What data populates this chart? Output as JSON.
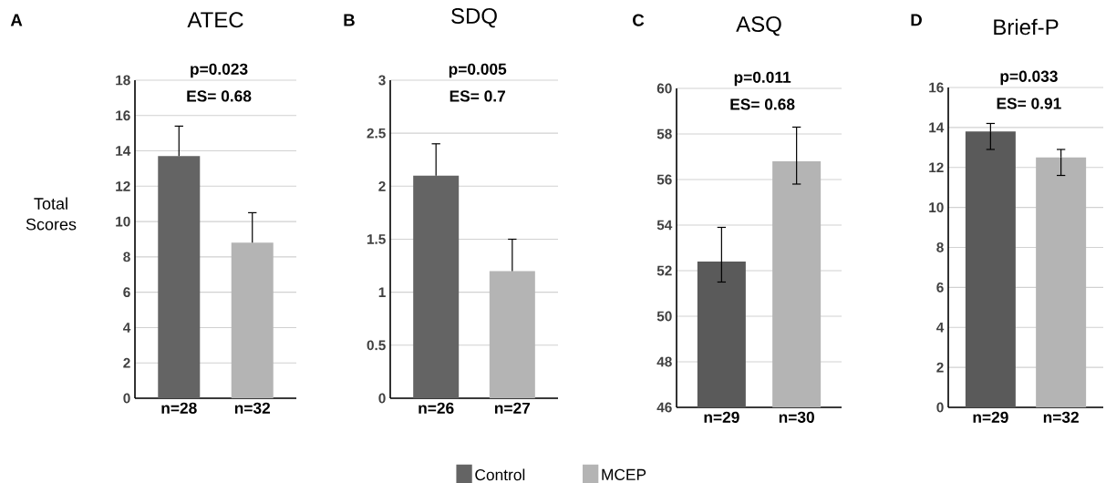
{
  "chart_data": [
    {
      "type": "bar",
      "title": "ATEC",
      "ylabel": "Total Scores",
      "annotations": [
        "A",
        "p=0.023",
        "ES= 0.68"
      ],
      "categories": [
        "n=28",
        "n=32"
      ],
      "ylim": [
        0,
        18
      ],
      "yticks": [
        0,
        2,
        4,
        6,
        8,
        10,
        12,
        14,
        16,
        18
      ],
      "grid": "y",
      "legend": "bottom",
      "series": [
        {
          "name": "Control",
          "color": "#646464",
          "values": [
            13.7,
            null
          ],
          "errors": [
            [
              13.7,
              15.4
            ],
            null
          ]
        },
        {
          "name": "MCEP",
          "color": "#b4b4b4",
          "values": [
            null,
            8.8
          ],
          "errors": [
            null,
            [
              8.8,
              10.5
            ]
          ]
        }
      ]
    },
    {
      "type": "bar",
      "title": "SDQ",
      "annotations": [
        "B",
        "p=0.005",
        "ES= 0.7"
      ],
      "categories": [
        "n=26",
        "n=27"
      ],
      "ylim": [
        0,
        3
      ],
      "yticks": [
        0,
        0.5,
        1,
        1.5,
        2,
        2.5,
        3
      ],
      "grid": "y",
      "series": [
        {
          "color": "#646464",
          "values": [
            2.1,
            null
          ],
          "errors": [
            [
              2.1,
              2.4
            ],
            null
          ]
        },
        {
          "color": "#b4b4b4",
          "values": [
            null,
            1.2
          ],
          "errors": [
            null,
            [
              1.2,
              1.5
            ]
          ]
        }
      ]
    },
    {
      "type": "bar",
      "title": "ASQ",
      "annotations": [
        "C",
        "p=0.011",
        "ES= 0.68"
      ],
      "categories": [
        "n=29",
        "n=30"
      ],
      "ylim": [
        46,
        60
      ],
      "yticks": [
        46,
        48,
        50,
        52,
        54,
        56,
        58,
        60
      ],
      "grid": "y",
      "series": [
        {
          "color": "#5a5a5a",
          "values": [
            52.4,
            null
          ],
          "errors": [
            [
              51.5,
              53.9
            ],
            null
          ]
        },
        {
          "color": "#b4b4b4",
          "values": [
            null,
            56.8
          ],
          "errors": [
            null,
            [
              55.8,
              58.3
            ]
          ]
        }
      ]
    },
    {
      "type": "bar",
      "title": "Brief-P",
      "annotations": [
        "D",
        "p=0.033",
        "ES= 0.91"
      ],
      "categories": [
        "n=29",
        "n=32"
      ],
      "ylim": [
        0,
        16
      ],
      "yticks": [
        0,
        2,
        4,
        6,
        8,
        10,
        12,
        14,
        16
      ],
      "grid": "y",
      "series": [
        {
          "color": "#5a5a5a",
          "values": [
            13.8,
            null
          ],
          "errors": [
            [
              12.9,
              14.2
            ],
            null
          ]
        },
        {
          "color": "#b4b4b4",
          "values": [
            null,
            12.5
          ],
          "errors": [
            null,
            [
              11.6,
              12.9
            ]
          ]
        }
      ]
    }
  ]
}
